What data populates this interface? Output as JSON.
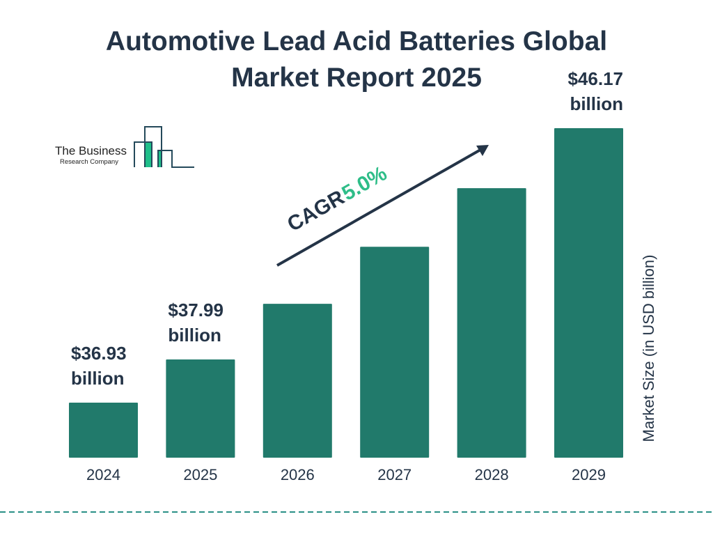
{
  "title_line1": "Automotive Lead Acid Batteries Global",
  "title_line2": "Market Report 2025",
  "logo": {
    "line1": "The Business",
    "line2": "Research Company"
  },
  "colors": {
    "bar": "#217a6b",
    "text": "#243447",
    "accent": "#2ebd88",
    "logo_green": "#1fbf8a"
  },
  "chart_data": {
    "type": "bar",
    "categories": [
      "2024",
      "2025",
      "2026",
      "2027",
      "2028",
      "2029"
    ],
    "values": [
      36.93,
      37.99,
      39.89,
      41.88,
      43.98,
      46.17
    ],
    "data_labels": [
      {
        "category": "2024",
        "line1": "$36.93",
        "line2": "billion"
      },
      {
        "category": "2025",
        "line1": "$37.99",
        "line2": "billion"
      },
      {
        "category": "2029",
        "line1": "$46.17",
        "line2": "billion"
      }
    ],
    "ylabel": "Market Size (in USD billion)",
    "annotation": {
      "label": "CAGR",
      "value": "5.0%"
    },
    "grid": false
  }
}
